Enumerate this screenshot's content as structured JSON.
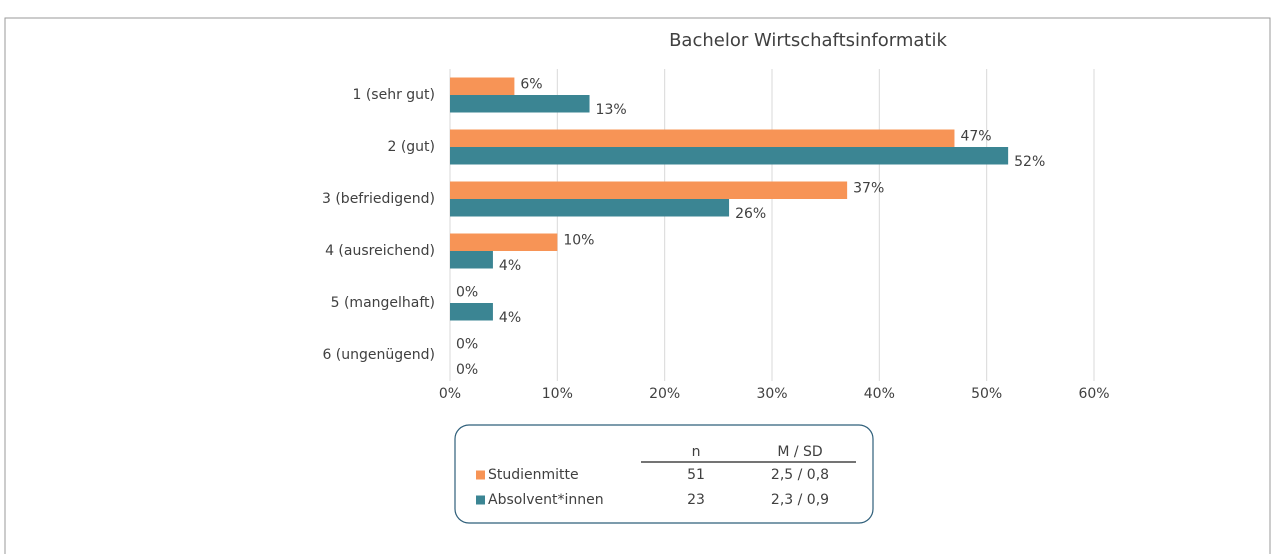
{
  "chart_data": {
    "type": "bar",
    "orientation": "horizontal",
    "title": "Bachelor Wirtschaftsinformatik",
    "categories": [
      "1 (sehr gut)",
      "2 (gut)",
      "3 (befriedigend)",
      "4 (ausreichend)",
      "5 (mangelhaft)",
      "6 (ungenügend)"
    ],
    "series": [
      {
        "name": "Studienmitte",
        "color": "#f79456",
        "values": [
          6,
          47,
          37,
          10,
          0,
          0
        ],
        "value_labels": [
          "6%",
          "47%",
          "37%",
          "10%",
          "0%",
          "0%"
        ]
      },
      {
        "name": "Absolvent*innen",
        "color": "#3b8593",
        "values": [
          13,
          52,
          26,
          4,
          4,
          0
        ],
        "value_labels": [
          "13%",
          "52%",
          "26%",
          "4%",
          "4%",
          "0%"
        ]
      }
    ],
    "xlim": [
      0,
      60
    ],
    "xticks": [
      {
        "value": 0,
        "label": "0%"
      },
      {
        "value": 10,
        "label": "10%"
      },
      {
        "value": 20,
        "label": "20%"
      },
      {
        "value": 30,
        "label": "30%"
      },
      {
        "value": 40,
        "label": "40%"
      },
      {
        "value": 50,
        "label": "50%"
      },
      {
        "value": 60,
        "label": "60%"
      }
    ],
    "grid": true,
    "legend_table": {
      "headers": [
        "n",
        "M / SD"
      ],
      "rows": [
        [
          51,
          "2,5 / 0,8"
        ],
        [
          23,
          "2,3 / 0,9"
        ]
      ]
    }
  }
}
